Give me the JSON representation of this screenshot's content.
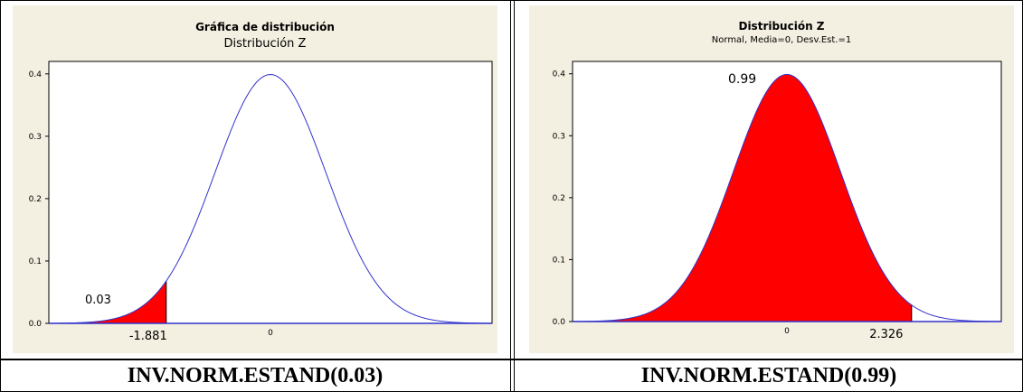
{
  "chart_data": [
    {
      "type": "area",
      "title": "Gráfica de distribución",
      "subtitle": "Distribución Z",
      "distribution": "normal",
      "mean": 0,
      "sd": 1,
      "xlim": [
        -4,
        4
      ],
      "ylim": [
        0,
        0.42
      ],
      "yticks": [
        "0.0",
        "0.1",
        "0.2",
        "0.3",
        "0.4"
      ],
      "xticks": [
        "0"
      ],
      "shaded_region": {
        "from": -4,
        "to": -1.881,
        "side": "left"
      },
      "annotations": {
        "area": "0.03",
        "cutoff": "-1.881"
      },
      "colors": {
        "curve": "#3333cc",
        "fill": "#ff0000",
        "background": "#f3efe1"
      }
    },
    {
      "type": "area",
      "title": "Distribución Z",
      "subtitle": "Normal, Media=0, Desv.Est.=1",
      "distribution": "normal",
      "mean": 0,
      "sd": 1,
      "xlim": [
        -4,
        4
      ],
      "ylim": [
        0,
        0.42
      ],
      "yticks": [
        "0.0",
        "0.1",
        "0.2",
        "0.3",
        "0.4"
      ],
      "xticks": [
        "0"
      ],
      "shaded_region": {
        "from": -4,
        "to": 2.326,
        "side": "left"
      },
      "annotations": {
        "area": "0.99",
        "cutoff": "2.326"
      },
      "colors": {
        "curve": "#3333cc",
        "fill": "#ff0000",
        "background": "#f3efe1"
      }
    }
  ],
  "captions": {
    "left": "INV.NORM.ESTAND(0.03)",
    "right": "INV.NORM.ESTAND(0.99)"
  }
}
